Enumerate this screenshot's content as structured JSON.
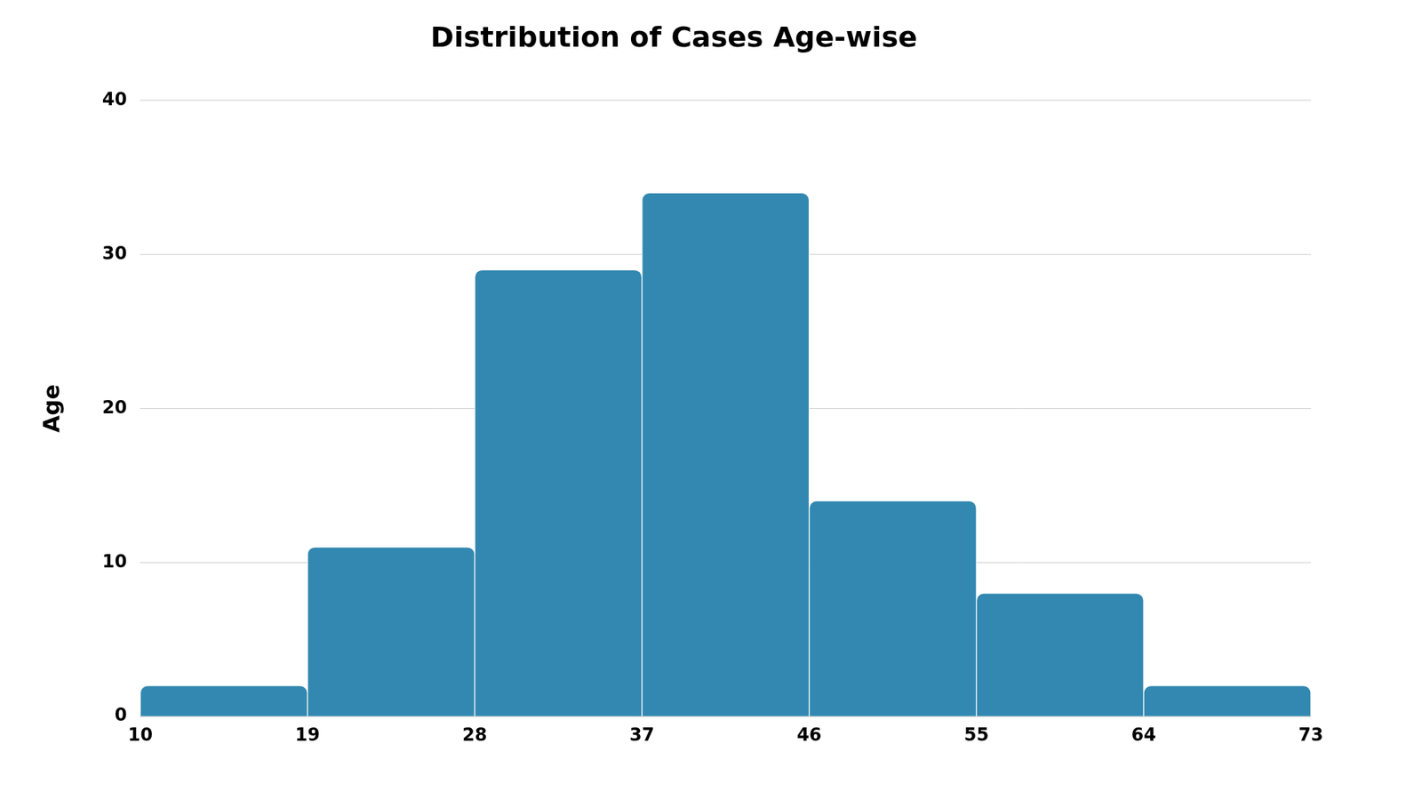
{
  "chart_data": {
    "type": "histogram",
    "title": "Distribution of Cases Age-wise",
    "y_label": "Age",
    "bins": [
      10,
      19,
      28,
      37,
      46,
      55,
      64,
      73
    ],
    "values": [
      2,
      11,
      29,
      34,
      14,
      8,
      2
    ],
    "color": "#3288b0",
    "xlim": [
      10,
      73
    ],
    "xticks": [
      10,
      19,
      28,
      37,
      46,
      55,
      64,
      73
    ],
    "ylim": [
      0,
      40
    ],
    "yticks": [
      0,
      10,
      20,
      30,
      40
    ],
    "grid": true
  }
}
